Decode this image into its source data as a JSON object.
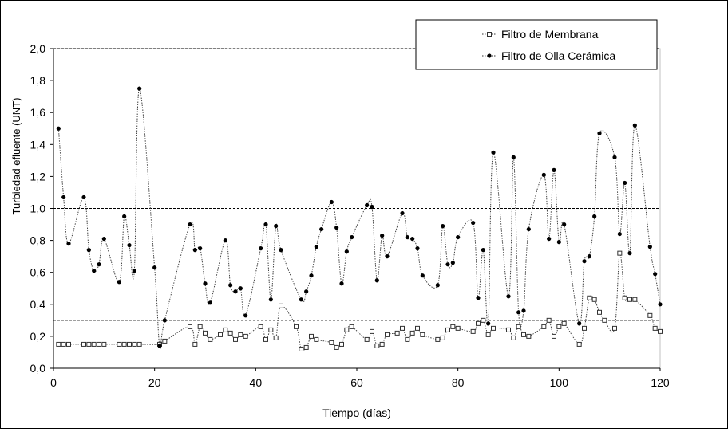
{
  "chart_data": {
    "type": "line",
    "xlabel": "Tiempo (días)",
    "ylabel": "Turbiedad efluente (UNT)",
    "xlim": [
      0,
      120
    ],
    "ylim": [
      0,
      2
    ],
    "x_ticks": [
      "0",
      "20",
      "40",
      "60",
      "80",
      "100",
      "120"
    ],
    "y_ticks": [
      "0,0",
      "0,2",
      "0,4",
      "0,6",
      "0,8",
      "1,0",
      "1,2",
      "1,4",
      "1,6",
      "1,8",
      "2,0"
    ],
    "reference_lines": [
      0.3,
      1.0,
      2.0
    ],
    "legend_position": "top-right",
    "series": [
      {
        "name": "Filtro de Membrana",
        "marker": "open-square",
        "x": [
          1,
          2,
          3,
          6,
          7,
          8,
          9,
          10,
          13,
          14,
          15,
          16,
          17,
          21,
          22,
          27,
          28,
          29,
          30,
          31,
          33,
          34,
          35,
          36,
          37,
          38,
          41,
          42,
          43,
          44,
          45,
          48,
          49,
          50,
          51,
          52,
          55,
          56,
          57,
          58,
          59,
          62,
          63,
          64,
          65,
          66,
          68,
          69,
          70,
          71,
          72,
          73,
          76,
          77,
          78,
          79,
          80,
          83,
          84,
          85,
          86,
          87,
          90,
          91,
          92,
          93,
          94,
          97,
          98,
          99,
          100,
          101,
          104,
          105,
          106,
          107,
          108,
          109,
          111,
          112,
          113,
          114,
          115,
          118,
          119,
          120
        ],
        "y": [
          0.15,
          0.15,
          0.15,
          0.15,
          0.15,
          0.15,
          0.15,
          0.15,
          0.15,
          0.15,
          0.15,
          0.15,
          0.15,
          0.15,
          0.17,
          0.26,
          0.15,
          0.26,
          0.22,
          0.18,
          0.21,
          0.24,
          0.22,
          0.18,
          0.21,
          0.2,
          0.26,
          0.18,
          0.24,
          0.19,
          0.39,
          0.26,
          0.12,
          0.13,
          0.2,
          0.18,
          0.16,
          0.13,
          0.15,
          0.24,
          0.26,
          0.18,
          0.23,
          0.14,
          0.15,
          0.21,
          0.22,
          0.25,
          0.18,
          0.22,
          0.25,
          0.21,
          0.18,
          0.19,
          0.24,
          0.26,
          0.25,
          0.23,
          0.28,
          0.3,
          0.21,
          0.25,
          0.24,
          0.19,
          0.26,
          0.21,
          0.2,
          0.26,
          0.3,
          0.2,
          0.26,
          0.28,
          0.15,
          0.25,
          0.44,
          0.43,
          0.35,
          0.3,
          0.25,
          0.72,
          0.44,
          0.43,
          0.43,
          0.33,
          0.25,
          0.23
        ]
      },
      {
        "name": "Filtro de Olla Cerámica",
        "marker": "filled-circle",
        "x": [
          1,
          2,
          3,
          6,
          7,
          8,
          9,
          10,
          13,
          14,
          15,
          16,
          17,
          20,
          21,
          22,
          27,
          28,
          29,
          30,
          31,
          34,
          35,
          36,
          37,
          38,
          41,
          42,
          43,
          44,
          45,
          49,
          50,
          51,
          52,
          53,
          55,
          56,
          57,
          58,
          59,
          62,
          63,
          64,
          65,
          66,
          69,
          70,
          71,
          72,
          73,
          76,
          77,
          78,
          79,
          80,
          83,
          84,
          85,
          86,
          87,
          90,
          91,
          92,
          93,
          94,
          97,
          98,
          99,
          100,
          101,
          104,
          105,
          106,
          107,
          108,
          111,
          112,
          113,
          114,
          115,
          118,
          119,
          120
        ],
        "y": [
          1.5,
          1.07,
          0.78,
          1.07,
          0.74,
          0.61,
          0.65,
          0.81,
          0.54,
          0.95,
          0.77,
          0.61,
          1.75,
          0.63,
          0.14,
          0.3,
          0.9,
          0.74,
          0.75,
          0.53,
          0.41,
          0.8,
          0.52,
          0.48,
          0.5,
          0.33,
          0.75,
          0.9,
          0.43,
          0.89,
          0.74,
          0.43,
          0.48,
          0.58,
          0.76,
          0.87,
          1.04,
          0.88,
          0.53,
          0.73,
          0.82,
          1.02,
          1.01,
          0.55,
          0.83,
          0.7,
          0.97,
          0.82,
          0.81,
          0.75,
          0.58,
          0.52,
          0.89,
          0.65,
          0.66,
          0.82,
          0.91,
          0.44,
          0.74,
          0.28,
          1.35,
          0.45,
          1.32,
          0.35,
          0.36,
          0.87,
          1.21,
          0.81,
          1.24,
          0.79,
          0.9,
          0.28,
          0.67,
          0.7,
          0.95,
          1.47,
          1.32,
          0.84,
          1.16,
          0.72,
          1.52,
          0.76,
          0.59,
          0.4
        ]
      }
    ]
  }
}
